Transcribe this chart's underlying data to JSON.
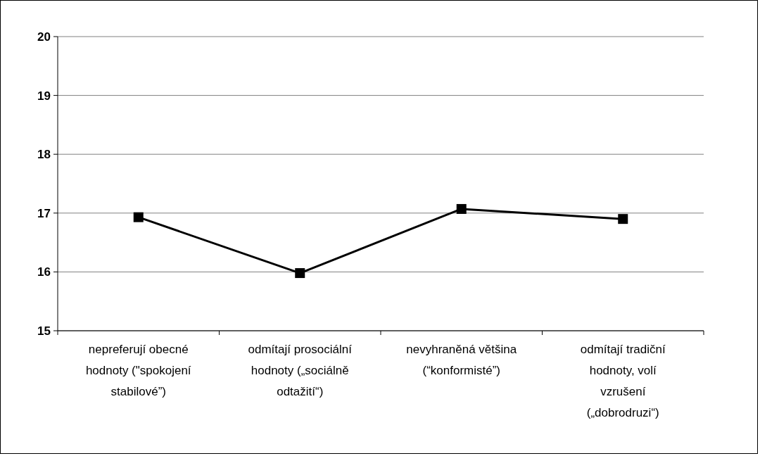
{
  "chart_data": {
    "type": "line",
    "categories": [
      "nepreferují obecné hodnoty (\"spokojení stabilové”)",
      "odmítají prosociální hodnoty („sociálně odtažití“)",
      "nevyhraněná většina (“konformisté”)",
      "odmítají tradiční hodnoty, volí vzrušení („dobrodruzi“)"
    ],
    "series": [
      {
        "color": "#000000",
        "values": [
          16.93,
          15.98,
          17.07,
          16.9
        ]
      }
    ],
    "ylim": [
      15,
      20
    ],
    "yticks": [
      15,
      16,
      17,
      18,
      19,
      20
    ],
    "grid": "y",
    "marker": "square",
    "line_style": "solid"
  }
}
